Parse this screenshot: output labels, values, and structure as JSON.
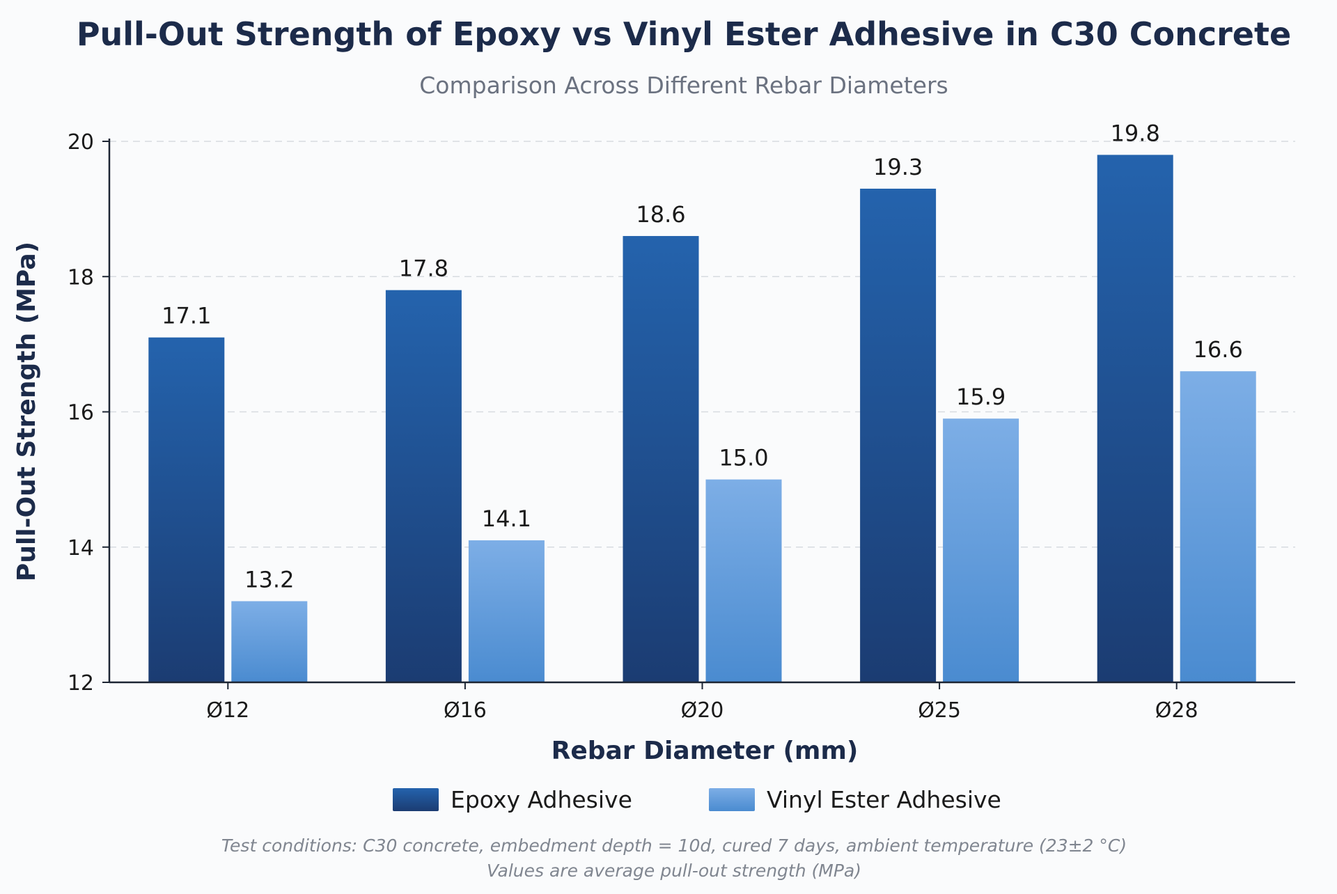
{
  "chart_data": {
    "type": "bar",
    "title": "Pull-Out Strength of Epoxy vs Vinyl Ester Adhesive in C30 Concrete",
    "subtitle": "Comparison Across Different Rebar Diameters",
    "xlabel": "Rebar Diameter (mm)",
    "ylabel": "Pull-Out Strength (MPa)",
    "categories": [
      "Ø12",
      "Ø16",
      "Ø20",
      "Ø25",
      "Ø28"
    ],
    "series": [
      {
        "name": "Epoxy Adhesive",
        "values": [
          17.1,
          17.8,
          18.6,
          19.3,
          19.8
        ],
        "value_labels": [
          "17.1",
          "17.8",
          "18.6",
          "19.3",
          "19.8"
        ]
      },
      {
        "name": "Vinyl Ester Adhesive",
        "values": [
          13.2,
          14.1,
          15.0,
          15.9,
          16.6
        ],
        "value_labels": [
          "13.2",
          "14.1",
          "15.0",
          "15.9",
          "16.6"
        ]
      }
    ],
    "ylim": [
      12,
      20
    ],
    "yticks": [
      "12",
      "14",
      "16",
      "18",
      "20"
    ],
    "grid": true,
    "legend_position": "bottom-center",
    "footnote_lines": [
      "Test conditions: C30 concrete, embedment depth = 10d, cured 7 days, ambient temperature (23±2 °C)",
      "Values are average pull-out strength (MPa)"
    ]
  },
  "colors": {
    "epoxy_top": "#2463ad",
    "epoxy_bottom": "#1b3c72",
    "vinyl_top": "#7daee6",
    "vinyl_bottom": "#4a8bd0",
    "title": "#1c2b4a",
    "subtitle": "#6b7280"
  }
}
